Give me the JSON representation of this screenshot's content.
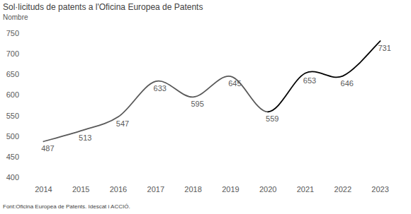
{
  "chart_data": {
    "type": "line",
    "title": "Sol·licituds de patents a l'Oficina Europea de Patents",
    "ylabel": "Nombre",
    "source": "Font:Oficina Europea de Patents. Idescat i ACCIÓ.",
    "categories": [
      "2014",
      "2015",
      "2016",
      "2017",
      "2018",
      "2019",
      "2020",
      "2021",
      "2022",
      "2023"
    ],
    "series": [
      {
        "color": "#595959",
        "values": [
          487,
          513,
          547,
          633,
          595,
          645,
          559,
          null,
          null,
          null
        ]
      },
      {
        "color": "#000000",
        "values": [
          null,
          null,
          null,
          null,
          null,
          null,
          559,
          653,
          646,
          731
        ]
      }
    ],
    "ylim": [
      400,
      750
    ],
    "yticks": [
      400,
      450,
      500,
      550,
      600,
      650,
      700,
      750
    ],
    "grid": false,
    "data_labels": true
  }
}
